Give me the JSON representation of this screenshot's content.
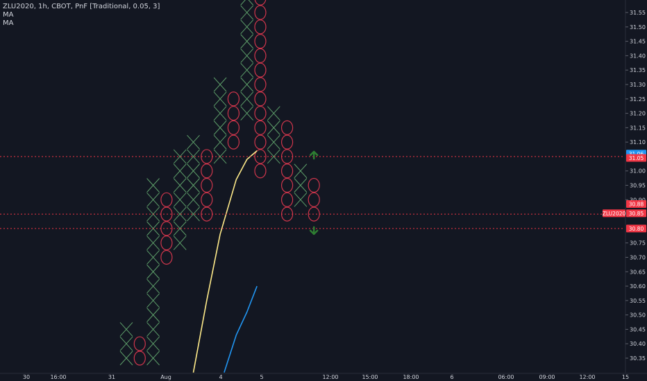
{
  "header": {
    "title": "ZLU2020, 1h, CBOT, PnF [Traditional, 0.05, 3]",
    "indicators": [
      "MA",
      "MA"
    ]
  },
  "chart_data": {
    "type": "point-and-figure",
    "symbol": "ZLU2020",
    "box_size": 0.05,
    "reversal": 3,
    "ylim": [
      30.32,
      31.59
    ],
    "y_ticks": [
      "31.55",
      "31.50",
      "31.45",
      "31.40",
      "31.35",
      "31.30",
      "31.25",
      "31.20",
      "31.15",
      "31.10",
      "31.00",
      "30.95",
      "30.90",
      "30.75",
      "30.70",
      "30.65",
      "30.60",
      "30.55",
      "30.50",
      "30.45",
      "30.40",
      "30.35"
    ],
    "x_ticks": [
      "30",
      "16:00",
      "31",
      "Aug",
      "4",
      "5",
      "12:00",
      "15:00",
      "18:00",
      "6",
      "06:00",
      "09:00",
      "12:00",
      "15"
    ],
    "columns": [
      {
        "type": "X",
        "low": 30.35,
        "high": 30.45
      },
      {
        "type": "O",
        "low": 30.35,
        "high": 30.4
      },
      {
        "type": "X",
        "low": 30.35,
        "high": 30.95
      },
      {
        "type": "O",
        "low": 30.7,
        "high": 30.9
      },
      {
        "type": "X",
        "low": 30.75,
        "high": 31.05
      },
      {
        "type": "X",
        "low": 30.85,
        "high": 31.1
      },
      {
        "type": "O",
        "low": 30.85,
        "high": 31.05
      },
      {
        "type": "X",
        "low": 31.05,
        "high": 31.3
      },
      {
        "type": "O",
        "low": 31.1,
        "high": 31.25
      },
      {
        "type": "X",
        "low": 31.2,
        "high": 31.6
      },
      {
        "type": "O",
        "low": 31.0,
        "high": 31.6
      },
      {
        "type": "X",
        "low": 31.05,
        "high": 31.2
      },
      {
        "type": "O",
        "low": 30.85,
        "high": 31.15
      },
      {
        "type": "X",
        "low": 30.9,
        "high": 31.0
      },
      {
        "type": "O",
        "low": 30.85,
        "high": 30.95
      }
    ],
    "moving_averages": [
      {
        "name": "MA",
        "color": "#ffeb8a",
        "points": [
          [
            5.0,
            30.3
          ],
          [
            6.0,
            30.55
          ],
          [
            7.0,
            30.78
          ],
          [
            8.2,
            30.97
          ],
          [
            9.0,
            31.04
          ],
          [
            9.75,
            31.07
          ]
        ]
      },
      {
        "name": "MA",
        "color": "#2196f3",
        "points": [
          [
            7.3,
            30.3
          ],
          [
            8.2,
            30.43
          ],
          [
            9.0,
            30.51
          ],
          [
            9.75,
            30.6
          ]
        ]
      }
    ],
    "price_lines": [
      {
        "value": 31.05,
        "label": "31.05",
        "color": "#f23645"
      },
      {
        "value": 30.85,
        "label": "30.85",
        "color": "#f23645"
      },
      {
        "value": 30.8,
        "label": "30.80",
        "color": "#f23645"
      }
    ],
    "price_labels": [
      {
        "text": "31.06",
        "value": 31.06,
        "color": "#2196f3"
      },
      {
        "text": "31.05",
        "value": 31.045,
        "color": "#f23645"
      },
      {
        "text": "30.88",
        "value": 30.885,
        "color": "#f23645"
      },
      {
        "text": "ZLU2020",
        "value": 30.853,
        "color": "#f23645"
      },
      {
        "text": "30.85",
        "value": 30.853,
        "color": "#f23645"
      },
      {
        "text": "30.80",
        "value": 30.8,
        "color": "#f23645"
      }
    ],
    "arrows": [
      {
        "direction": "up",
        "value": 31.05,
        "color": "#2e7d32"
      },
      {
        "direction": "down",
        "value": 30.8,
        "color": "#2e7d32"
      }
    ],
    "colors": {
      "background": "#131722",
      "x_box": "#5e9f6a",
      "o_box": "#d0364c",
      "axis_text": "#d1d4dc"
    }
  }
}
